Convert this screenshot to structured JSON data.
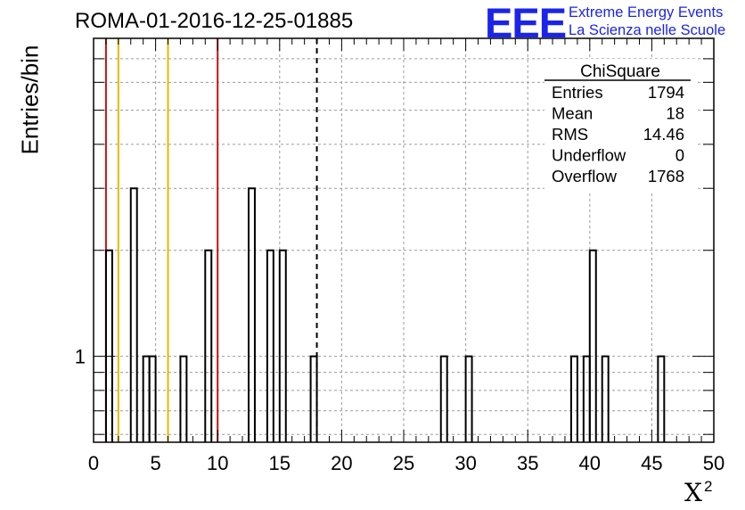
{
  "chart_data": {
    "type": "histogram",
    "title": "ROMA-01-2016-12-25-01885",
    "xlabel": "X",
    "xlabel_superscript": "2",
    "ylabel": "Entries/bin",
    "xlim": [
      0,
      50
    ],
    "y_scale": "log",
    "ylim": [
      0.57,
      8
    ],
    "y_tick_labels": [
      {
        "value": 1,
        "label": "1"
      }
    ],
    "x_ticks": [
      0,
      5,
      10,
      15,
      20,
      25,
      30,
      35,
      40,
      45,
      50
    ],
    "grid": true,
    "bin_width": 0.5,
    "bins": [
      {
        "x": 1.0,
        "y": 2
      },
      {
        "x": 3.0,
        "y": 3
      },
      {
        "x": 4.0,
        "y": 1
      },
      {
        "x": 4.5,
        "y": 1
      },
      {
        "x": 7.0,
        "y": 1
      },
      {
        "x": 9.0,
        "y": 2
      },
      {
        "x": 12.5,
        "y": 3
      },
      {
        "x": 14.0,
        "y": 2
      },
      {
        "x": 15.0,
        "y": 2
      },
      {
        "x": 17.5,
        "y": 1
      },
      {
        "x": 28.0,
        "y": 1
      },
      {
        "x": 30.0,
        "y": 1
      },
      {
        "x": 38.5,
        "y": 1
      },
      {
        "x": 39.5,
        "y": 1
      },
      {
        "x": 40.0,
        "y": 2
      },
      {
        "x": 41.0,
        "y": 1
      },
      {
        "x": 45.5,
        "y": 1
      }
    ],
    "vertical_lines": [
      {
        "x": 1.0,
        "color": "#cc1111",
        "style": "solid"
      },
      {
        "x": 2.0,
        "color": "#e8b800",
        "style": "solid"
      },
      {
        "x": 6.0,
        "color": "#e8b800",
        "style": "solid"
      },
      {
        "x": 10.0,
        "color": "#cc1111",
        "style": "solid"
      },
      {
        "x": 18.0,
        "color": "#000000",
        "style": "dashed"
      }
    ],
    "stats_box": {
      "title": "ChiSquare",
      "rows": [
        {
          "label": "Entries",
          "value": "1794"
        },
        {
          "label": "Mean",
          "value": "18"
        },
        {
          "label": "RMS",
          "value": "14.46"
        },
        {
          "label": "Underflow",
          "value": "0"
        },
        {
          "label": "Overflow",
          "value": "1768"
        }
      ]
    }
  },
  "logo": {
    "mark": "EEE",
    "line1": "Extreme Energy Events",
    "line2": "La Scienza nelle Scuole",
    "color": "#1b25e8"
  }
}
